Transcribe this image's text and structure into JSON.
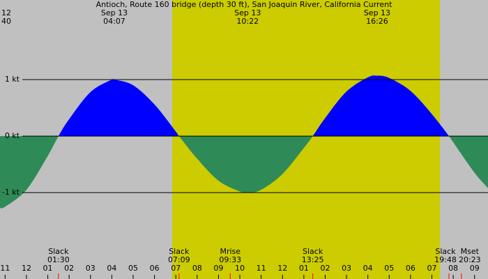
{
  "chart_data": {
    "type": "current",
    "title": "Antioch, Route 160 bridge (depth 30 ft), San Joaquin River, California Current",
    "background_color": "#c0c0c0",
    "daylight_color": "#cccc00",
    "daylight_band": [
      6.83,
      19.38
    ],
    "xlim": [
      -1.24,
      21.63
    ],
    "ylim": [
      -2.53,
      2.41
    ],
    "yticks": [
      {
        "value": 1,
        "label": "1 kt"
      },
      {
        "value": 0,
        "label": "0 kt"
      },
      {
        "value": -1,
        "label": "-1 kt"
      }
    ],
    "xticks": [
      {
        "value": -1,
        "label": "11"
      },
      {
        "value": 0,
        "label": "12"
      },
      {
        "value": 1,
        "label": "01"
      },
      {
        "value": 2,
        "label": "02"
      },
      {
        "value": 3,
        "label": "03"
      },
      {
        "value": 4,
        "label": "04"
      },
      {
        "value": 5,
        "label": "05"
      },
      {
        "value": 6,
        "label": "06"
      },
      {
        "value": 7,
        "label": "07"
      },
      {
        "value": 8,
        "label": "08"
      },
      {
        "value": 9,
        "label": "09"
      },
      {
        "value": 10,
        "label": "10"
      },
      {
        "value": 11,
        "label": "11"
      },
      {
        "value": 12,
        "label": "12"
      },
      {
        "value": 13,
        "label": "01"
      },
      {
        "value": 14,
        "label": "02"
      },
      {
        "value": 15,
        "label": "03"
      },
      {
        "value": 16,
        "label": "04"
      },
      {
        "value": 17,
        "label": "05"
      },
      {
        "value": 18,
        "label": "06"
      },
      {
        "value": 19,
        "label": "07"
      },
      {
        "value": 20,
        "label": "08"
      },
      {
        "value": 21,
        "label": "09"
      }
    ],
    "top_events": [
      {
        "date": "12",
        "time": "40",
        "x": -1.33
      },
      {
        "date": "Sep 13",
        "time": "04:07",
        "x": 4.117
      },
      {
        "date": "Sep 13",
        "time": "10:22",
        "x": 10.367
      },
      {
        "date": "Sep 13",
        "time": "16:26",
        "x": 16.433
      }
    ],
    "bottom_events": [
      {
        "name": "Slack",
        "time": "01:30",
        "x": 1.5
      },
      {
        "name": "Slack",
        "time": "07:09",
        "x": 7.15
      },
      {
        "name": "Mrise",
        "time": "09:33",
        "x": 9.55
      },
      {
        "name": "Slack",
        "time": "13:25",
        "x": 13.417
      },
      {
        "name": "Slack",
        "time": "19:48",
        "x": 19.8
      },
      {
        "name": "Mset",
        "time": "20:23",
        "x": 20.383
      }
    ],
    "series": [
      {
        "flood_color": "#0000ff",
        "ebb_color": "#2e8b57",
        "x": [
          -1.24,
          -1,
          0,
          1,
          1.5,
          2,
          3,
          4,
          4.117,
          5,
          6,
          7,
          7.15,
          8,
          9,
          10,
          10.367,
          11,
          12,
          13,
          13.417,
          14,
          15,
          16,
          16.433,
          17,
          18,
          19,
          19.8,
          20,
          21,
          21.63
        ],
        "values": [
          -1.27,
          -1.25,
          -0.95,
          -0.35,
          0,
          0.3,
          0.78,
          1.0,
          1.0,
          0.9,
          0.56,
          0.08,
          0,
          -0.4,
          -0.79,
          -0.98,
          -1.0,
          -0.95,
          -0.67,
          -0.21,
          0,
          0.32,
          0.79,
          1.04,
          1.07,
          1.03,
          0.8,
          0.39,
          0,
          -0.11,
          -0.65,
          -0.92
        ]
      }
    ]
  }
}
